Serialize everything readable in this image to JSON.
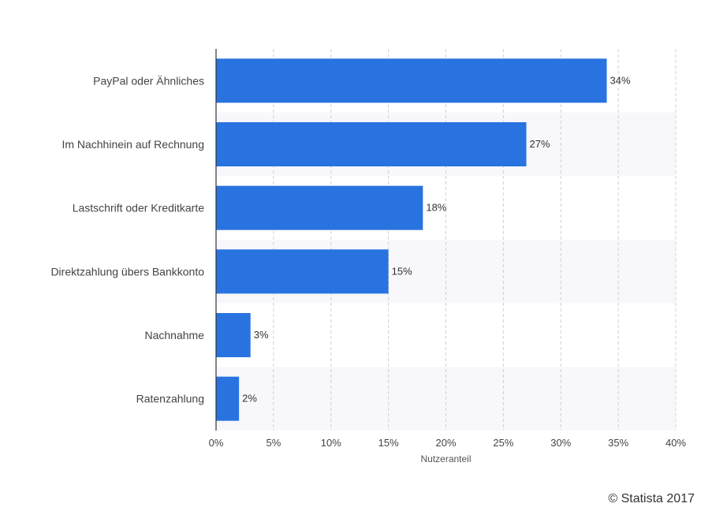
{
  "chart_data": {
    "type": "bar",
    "orientation": "horizontal",
    "categories": [
      "PayPal oder Ähnliches",
      "Im Nachhinein auf Rechnung",
      "Lastschrift oder Kreditkarte",
      "Direktzahlung übers Bankkonto",
      "Nachnahme",
      "Ratenzahlung"
    ],
    "values": [
      34,
      27,
      18,
      15,
      3,
      2
    ],
    "value_labels": [
      "34%",
      "27%",
      "18%",
      "15%",
      "3%",
      "2%"
    ],
    "xlabel": "Nutzeranteil",
    "ylabel": "",
    "xlim": [
      0,
      40
    ],
    "xticks": [
      0,
      5,
      10,
      15,
      20,
      25,
      30,
      35,
      40
    ],
    "xtick_labels": [
      "0%",
      "5%",
      "10%",
      "15%",
      "20%",
      "25%",
      "30%",
      "35%",
      "40%"
    ],
    "grid": "vertical dashed",
    "bar_color": "#2873e0"
  },
  "footer": {
    "copyright": "© Statista 2017"
  }
}
